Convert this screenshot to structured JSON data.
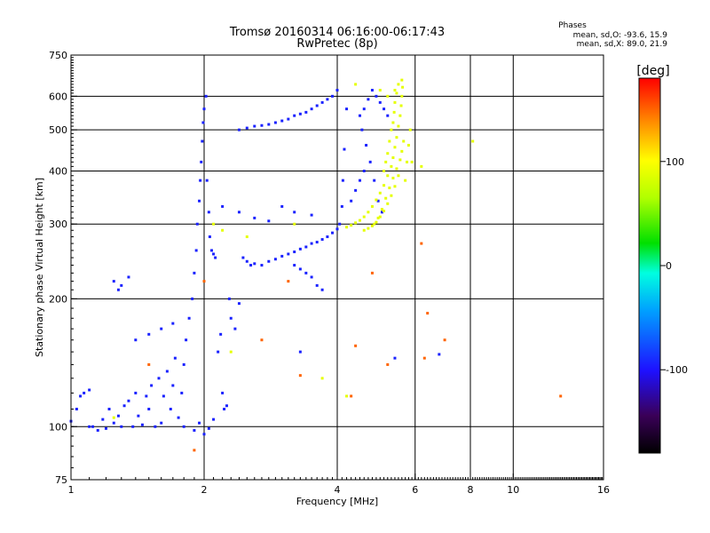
{
  "title_line1": "Tromsø 20160314 06:16:00-06:17:43",
  "title_line2": "RwPretec (8p)",
  "stats": {
    "heading": "Phases",
    "line_o": "mean, sd,O: -93.6, 15.9",
    "line_x": "mean, sd,X:  89.0, 21.9"
  },
  "colorbar": {
    "label": "[deg]",
    "range": [
      -180,
      180
    ],
    "ticks": [
      {
        "value": 100,
        "label": "100"
      },
      {
        "value": 0,
        "label": "0"
      },
      {
        "value": -100,
        "label": "-100"
      }
    ]
  },
  "chart_data": {
    "type": "scatter",
    "title": "Tromsø 20160314 06:16:00-06:17:43",
    "subtitle": "RwPretec (8p)",
    "xlabel": "Frequency [MHz]",
    "ylabel": "Stationary phase Virtual Height [km]",
    "xscale": "log",
    "yscale": "log",
    "xlim": [
      1,
      16
    ],
    "ylim": [
      75,
      750
    ],
    "x_ticks": [
      {
        "value": 1,
        "label": "1"
      },
      {
        "value": 2,
        "label": "2"
      },
      {
        "value": 4,
        "label": "4"
      },
      {
        "value": 6,
        "label": "6"
      },
      {
        "value": 8,
        "label": "8"
      },
      {
        "value": 10,
        "label": "10"
      },
      {
        "value": 16,
        "label": "16"
      }
    ],
    "y_ticks": [
      {
        "value": 75,
        "label": "75"
      },
      {
        "value": 100,
        "label": "100"
      },
      {
        "value": 200,
        "label": "200"
      },
      {
        "value": 300,
        "label": "300"
      },
      {
        "value": 400,
        "label": "400"
      },
      {
        "value": 500,
        "label": "500"
      },
      {
        "value": 600,
        "label": "600"
      },
      {
        "value": 750,
        "label": "750"
      }
    ],
    "x_grid": [
      2,
      4,
      6,
      8,
      10
    ],
    "y_grid": [
      100,
      200,
      300,
      400,
      500,
      600
    ],
    "grid": true,
    "color_variable": "phase [deg]",
    "series": [
      {
        "phase_group": "O",
        "color_phase": -93.6,
        "points": [
          [
            1.0,
            103
          ],
          [
            1.03,
            110
          ],
          [
            1.05,
            118
          ],
          [
            1.07,
            120
          ],
          [
            1.1,
            122
          ],
          [
            1.12,
            100
          ],
          [
            1.15,
            98
          ],
          [
            1.18,
            104
          ],
          [
            1.2,
            99
          ],
          [
            1.22,
            110
          ],
          [
            1.25,
            102
          ],
          [
            1.28,
            106
          ],
          [
            1.3,
            100
          ],
          [
            1.32,
            112
          ],
          [
            1.35,
            115
          ],
          [
            1.38,
            100
          ],
          [
            1.4,
            120
          ],
          [
            1.42,
            106
          ],
          [
            1.45,
            101
          ],
          [
            1.48,
            118
          ],
          [
            1.5,
            110
          ],
          [
            1.52,
            125
          ],
          [
            1.55,
            100
          ],
          [
            1.58,
            130
          ],
          [
            1.6,
            102
          ],
          [
            1.62,
            118
          ],
          [
            1.65,
            135
          ],
          [
            1.68,
            110
          ],
          [
            1.7,
            125
          ],
          [
            1.72,
            145
          ],
          [
            1.75,
            105
          ],
          [
            1.78,
            120
          ],
          [
            1.8,
            140
          ],
          [
            1.82,
            160
          ],
          [
            1.85,
            180
          ],
          [
            1.88,
            200
          ],
          [
            1.9,
            230
          ],
          [
            1.92,
            260
          ],
          [
            1.93,
            300
          ],
          [
            1.95,
            340
          ],
          [
            1.96,
            380
          ],
          [
            1.97,
            420
          ],
          [
            1.98,
            470
          ],
          [
            1.99,
            520
          ],
          [
            2.0,
            560
          ],
          [
            2.02,
            600
          ],
          [
            2.03,
            380
          ],
          [
            2.05,
            320
          ],
          [
            2.06,
            280
          ],
          [
            2.08,
            260
          ],
          [
            2.1,
            255
          ],
          [
            2.12,
            250
          ],
          [
            2.15,
            150
          ],
          [
            2.18,
            165
          ],
          [
            2.2,
            120
          ],
          [
            2.22,
            110
          ],
          [
            2.25,
            112
          ],
          [
            2.28,
            200
          ],
          [
            2.3,
            180
          ],
          [
            2.35,
            170
          ],
          [
            2.4,
            195
          ],
          [
            2.45,
            250
          ],
          [
            2.5,
            245
          ],
          [
            2.55,
            240
          ],
          [
            2.6,
            242
          ],
          [
            2.7,
            240
          ],
          [
            2.8,
            245
          ],
          [
            2.9,
            248
          ],
          [
            3.0,
            252
          ],
          [
            3.1,
            255
          ],
          [
            3.2,
            258
          ],
          [
            3.3,
            262
          ],
          [
            3.4,
            265
          ],
          [
            3.5,
            270
          ],
          [
            3.6,
            272
          ],
          [
            3.7,
            276
          ],
          [
            3.8,
            280
          ],
          [
            3.9,
            286
          ],
          [
            4.0,
            292
          ],
          [
            4.05,
            300
          ],
          [
            4.1,
            330
          ],
          [
            4.12,
            380
          ],
          [
            4.15,
            450
          ],
          [
            4.2,
            560
          ],
          [
            2.4,
            500
          ],
          [
            2.5,
            505
          ],
          [
            2.6,
            510
          ],
          [
            2.7,
            512
          ],
          [
            2.8,
            515
          ],
          [
            2.9,
            520
          ],
          [
            3.0,
            525
          ],
          [
            3.1,
            530
          ],
          [
            3.2,
            540
          ],
          [
            3.3,
            545
          ],
          [
            3.4,
            550
          ],
          [
            3.5,
            560
          ],
          [
            3.6,
            570
          ],
          [
            3.7,
            580
          ],
          [
            3.8,
            590
          ],
          [
            3.9,
            600
          ],
          [
            4.0,
            620
          ],
          [
            4.5,
            540
          ],
          [
            4.6,
            560
          ],
          [
            4.7,
            590
          ],
          [
            4.8,
            620
          ],
          [
            4.9,
            600
          ],
          [
            5.0,
            580
          ],
          [
            5.1,
            560
          ],
          [
            5.2,
            540
          ],
          [
            4.55,
            500
          ],
          [
            4.65,
            460
          ],
          [
            4.75,
            420
          ],
          [
            4.85,
            380
          ],
          [
            4.95,
            340
          ],
          [
            5.05,
            320
          ],
          [
            1.25,
            220
          ],
          [
            1.28,
            210
          ],
          [
            1.3,
            215
          ],
          [
            1.35,
            225
          ],
          [
            3.2,
            240
          ],
          [
            3.3,
            235
          ],
          [
            3.4,
            230
          ],
          [
            3.5,
            225
          ],
          [
            3.6,
            215
          ],
          [
            3.7,
            210
          ],
          [
            1.8,
            100
          ],
          [
            1.9,
            98
          ],
          [
            1.95,
            102
          ],
          [
            2.0,
            96
          ],
          [
            2.05,
            99
          ],
          [
            2.1,
            104
          ],
          [
            3.0,
            330
          ],
          [
            3.2,
            320
          ],
          [
            3.5,
            315
          ],
          [
            2.2,
            330
          ],
          [
            2.4,
            320
          ],
          [
            2.6,
            310
          ],
          [
            2.8,
            305
          ],
          [
            4.3,
            340
          ],
          [
            4.4,
            360
          ],
          [
            4.5,
            380
          ],
          [
            4.6,
            400
          ],
          [
            1.4,
            160
          ],
          [
            1.5,
            165
          ],
          [
            1.6,
            170
          ],
          [
            1.7,
            175
          ],
          [
            3.3,
            150
          ],
          [
            5.4,
            145
          ],
          [
            6.8,
            148
          ],
          [
            1.1,
            100
          ]
        ]
      },
      {
        "phase_group": "X",
        "color_phase": 89.0,
        "points": [
          [
            4.2,
            295
          ],
          [
            4.3,
            298
          ],
          [
            4.4,
            302
          ],
          [
            4.5,
            306
          ],
          [
            4.6,
            312
          ],
          [
            4.7,
            320
          ],
          [
            4.8,
            330
          ],
          [
            4.9,
            342
          ],
          [
            5.0,
            355
          ],
          [
            5.1,
            370
          ],
          [
            5.2,
            390
          ],
          [
            5.3,
            410
          ],
          [
            5.35,
            430
          ],
          [
            5.4,
            455
          ],
          [
            5.45,
            480
          ],
          [
            5.5,
            510
          ],
          [
            5.55,
            540
          ],
          [
            5.58,
            570
          ],
          [
            5.6,
            600
          ],
          [
            5.62,
            630
          ],
          [
            5.5,
            640
          ],
          [
            5.45,
            610
          ],
          [
            5.4,
            580
          ],
          [
            5.38,
            550
          ],
          [
            5.35,
            520
          ],
          [
            5.3,
            500
          ],
          [
            5.25,
            470
          ],
          [
            5.2,
            440
          ],
          [
            5.15,
            420
          ],
          [
            5.1,
            400
          ],
          [
            4.85,
            300
          ],
          [
            4.95,
            310
          ],
          [
            5.05,
            325
          ],
          [
            5.15,
            345
          ],
          [
            5.25,
            365
          ],
          [
            5.35,
            385
          ],
          [
            5.45,
            405
          ],
          [
            5.55,
            425
          ],
          [
            5.6,
            445
          ],
          [
            5.65,
            470
          ],
          [
            4.6,
            290
          ],
          [
            4.7,
            293
          ],
          [
            4.8,
            297
          ],
          [
            4.9,
            303
          ],
          [
            5.0,
            312
          ],
          [
            5.1,
            322
          ],
          [
            5.2,
            335
          ],
          [
            5.3,
            350
          ],
          [
            5.4,
            368
          ],
          [
            5.5,
            390
          ],
          [
            2.1,
            300
          ],
          [
            2.2,
            290
          ],
          [
            2.5,
            280
          ],
          [
            3.2,
            300
          ],
          [
            4.4,
            640
          ],
          [
            5.7,
            380
          ],
          [
            5.75,
            420
          ],
          [
            5.8,
            460
          ],
          [
            5.85,
            500
          ],
          [
            5.9,
            420
          ],
          [
            6.2,
            410
          ],
          [
            5.0,
            620
          ],
          [
            5.2,
            600
          ],
          [
            5.4,
            620
          ],
          [
            5.6,
            655
          ],
          [
            2.3,
            150
          ],
          [
            3.7,
            130
          ],
          [
            4.2,
            118
          ],
          [
            8.1,
            470
          ],
          [
            1.25,
            105
          ]
        ]
      },
      {
        "phase_group": "other",
        "color_phase": 150,
        "points": [
          [
            2.0,
            220
          ],
          [
            1.5,
            140
          ],
          [
            3.1,
            220
          ],
          [
            3.3,
            132
          ],
          [
            4.4,
            155
          ],
          [
            5.2,
            140
          ],
          [
            6.3,
            145
          ],
          [
            7.0,
            160
          ],
          [
            1.9,
            88
          ],
          [
            4.3,
            118
          ],
          [
            6.2,
            270
          ],
          [
            12.8,
            118
          ],
          [
            6.4,
            185
          ],
          [
            2.7,
            160
          ],
          [
            4.8,
            230
          ]
        ]
      }
    ]
  }
}
